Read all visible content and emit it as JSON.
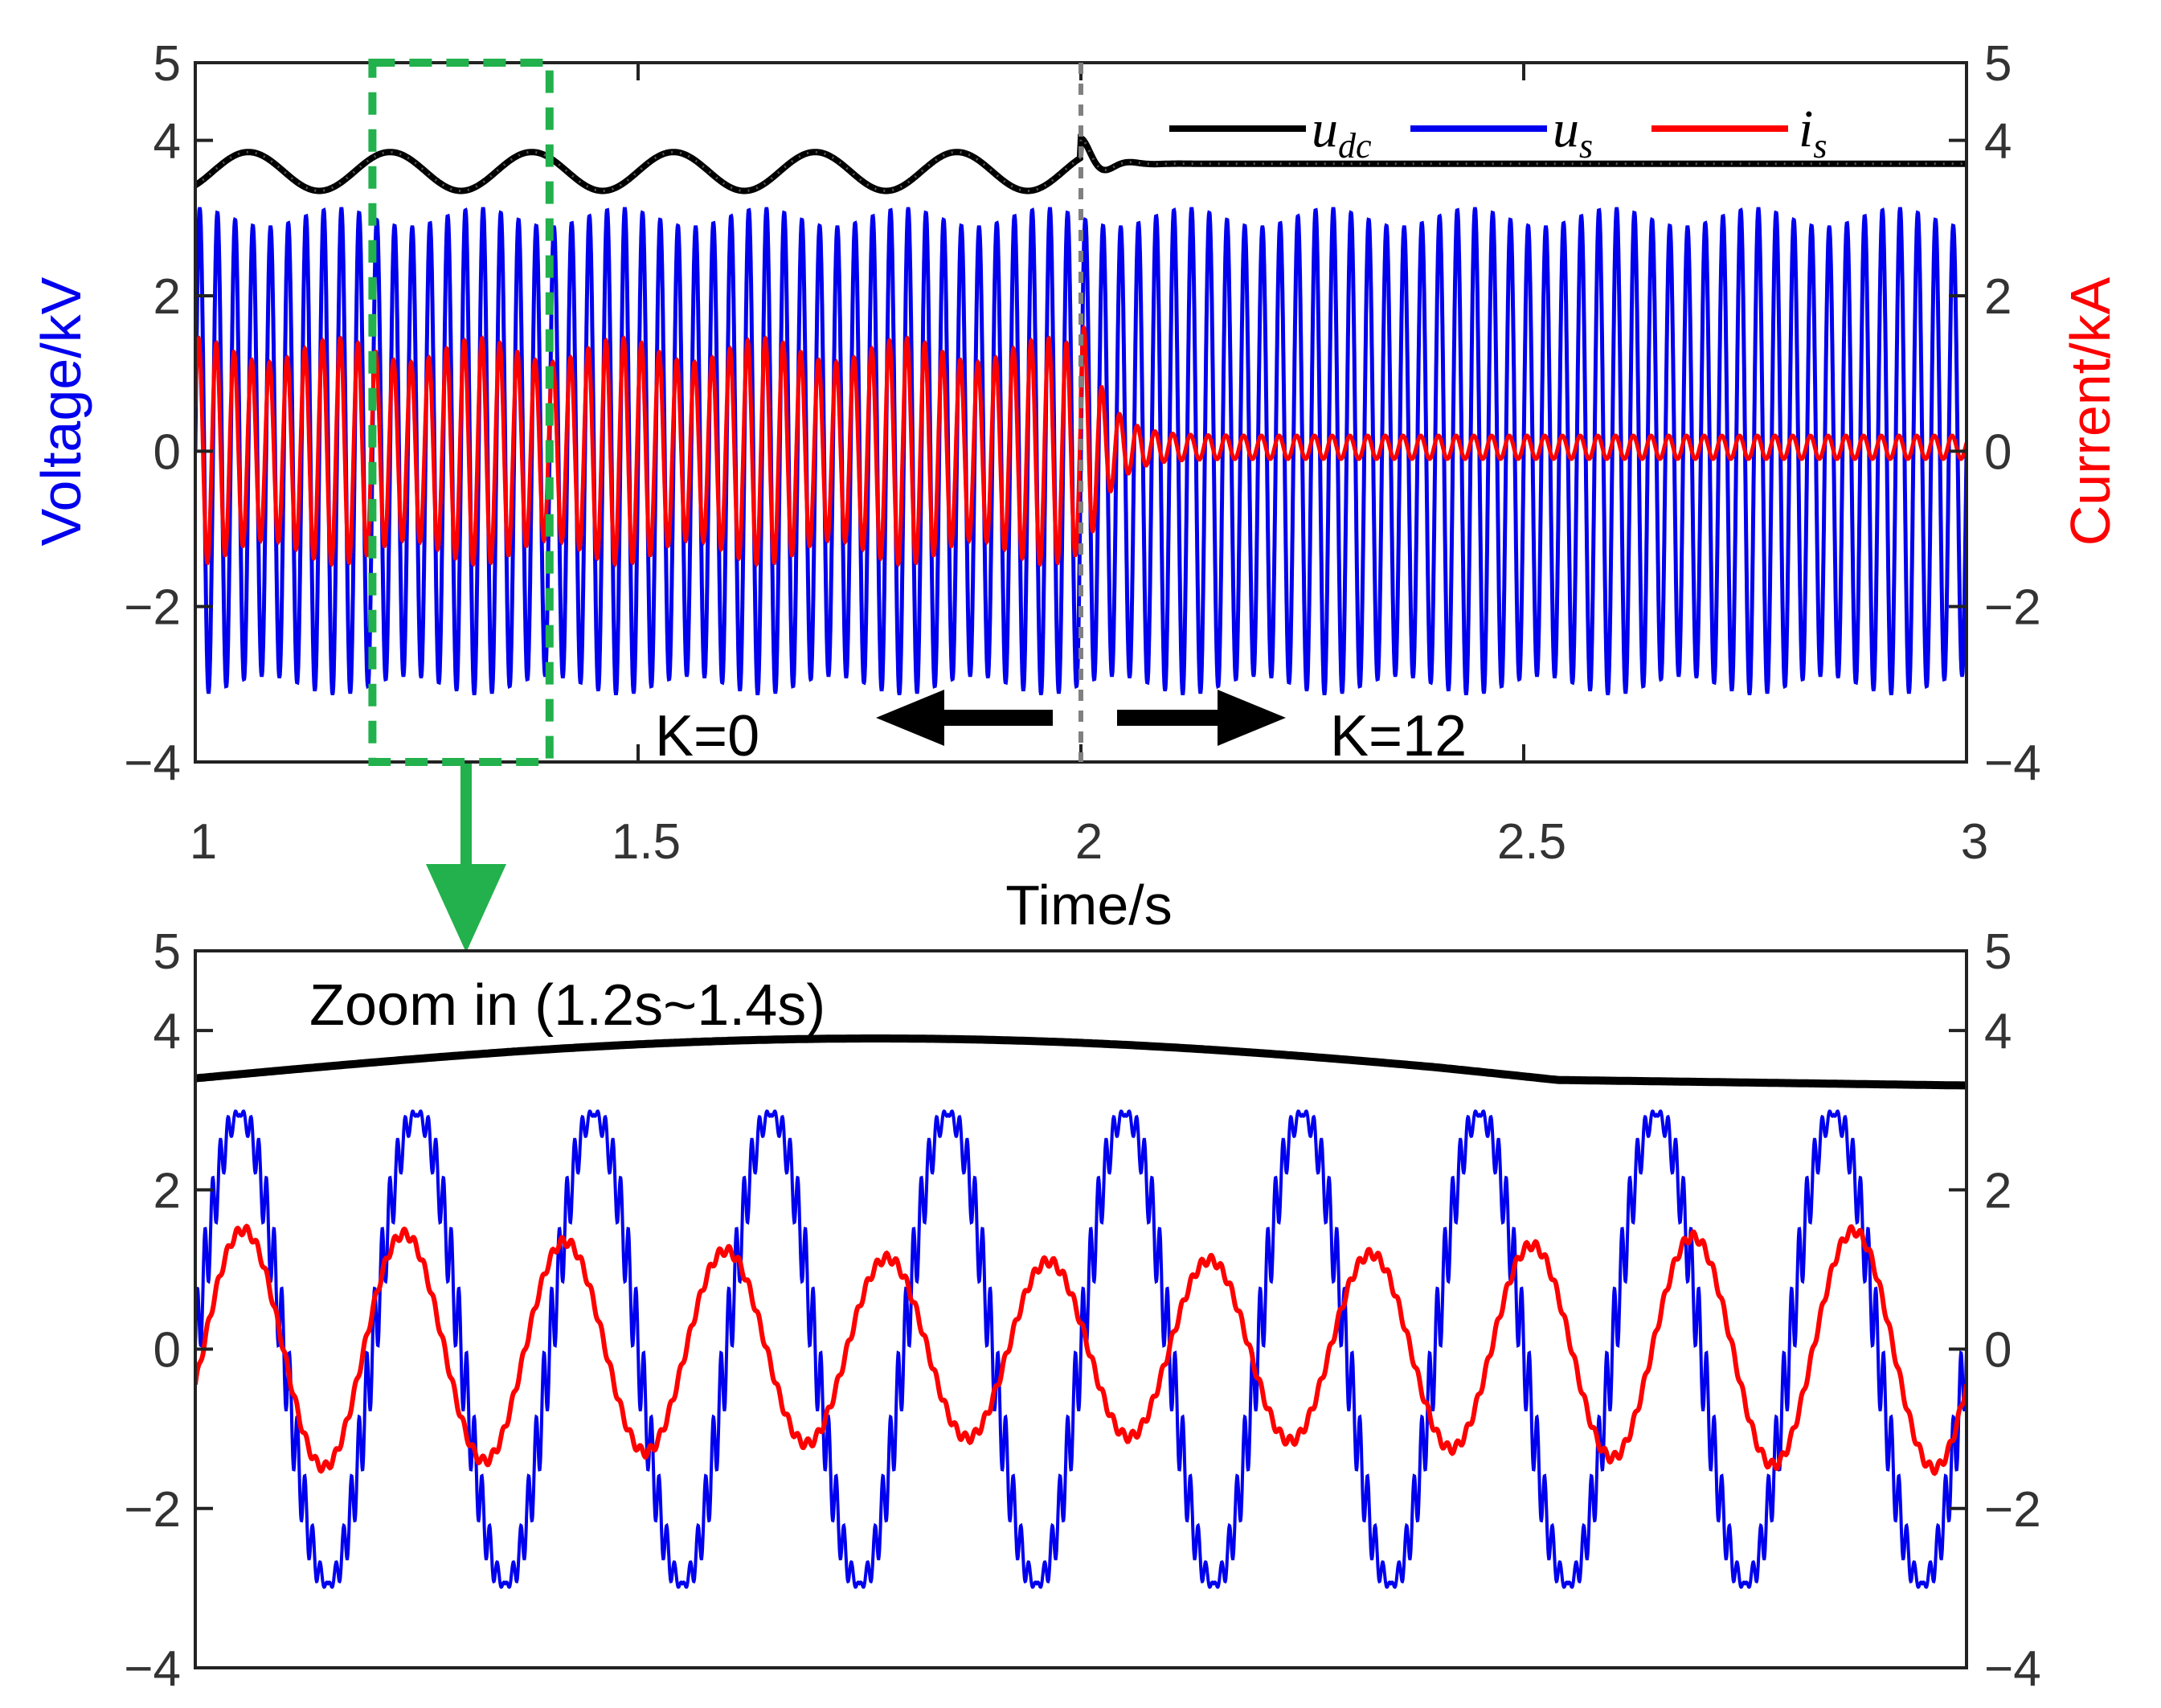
{
  "colors": {
    "udc": "#000000",
    "us": "#0000ee",
    "is": "#ff0000",
    "box": "#22b14c",
    "divider": "#808080",
    "voltage_axis": "#0000ee",
    "current_axis": "#ff0000"
  },
  "chart_data": [
    {
      "type": "line",
      "x": {
        "label": "Time/s",
        "range": [
          1,
          3
        ],
        "ticks": [
          1,
          1.5,
          2,
          2.5,
          3
        ],
        "tick_labels": [
          "1",
          "1.5",
          "2",
          "2.5",
          "3"
        ]
      },
      "y_left": {
        "label": "Voltage/kV",
        "range": [
          -4,
          5
        ],
        "ticks": [
          -4,
          -2,
          0,
          2,
          4,
          5
        ],
        "tick_labels": [
          "−4",
          "−2",
          "0",
          "2",
          "4",
          "5"
        ]
      },
      "y_right": {
        "label": "Current/kA",
        "range": [
          -4,
          5
        ],
        "ticks": [
          -4,
          -2,
          0,
          2,
          4,
          5
        ],
        "tick_labels": [
          "−4",
          "−2",
          "0",
          "2",
          "4",
          "5"
        ]
      },
      "legend": {
        "placement": "top-right",
        "entries": [
          {
            "base": "u",
            "sub": "dc",
            "color": "#000000"
          },
          {
            "base": "u",
            "sub": "s",
            "color": "#0000ee"
          },
          {
            "base": "i",
            "sub": "s",
            "color": "#ff0000"
          }
        ]
      },
      "series": [
        {
          "name": "u_dc",
          "axis": "left",
          "before_event": {
            "mean": 3.6,
            "osc_amplitude": 0.25,
            "osc_freq_hz": 6.25
          },
          "after_event": {
            "steady": 3.7
          }
        },
        {
          "name": "u_s",
          "axis": "left",
          "amplitude": 3.0,
          "freq_hz": 50
        },
        {
          "name": "i_s",
          "axis": "right",
          "before_event": {
            "amplitude": 1.3
          },
          "after_event": {
            "amplitude": 0.15
          }
        }
      ],
      "event": {
        "time": 2.0
      },
      "annotations": {
        "left_text": "K=0",
        "right_text": "K=12"
      },
      "zoom_window": [
        1.2,
        1.4
      ]
    },
    {
      "type": "line",
      "title": "Zoom in (1.2s~1.4s)",
      "x": {
        "range": [
          1.2,
          1.4
        ]
      },
      "y_left": {
        "range": [
          -4,
          5
        ],
        "ticks": [
          -4,
          -2,
          0,
          2,
          4,
          5
        ],
        "tick_labels": [
          "−4",
          "−2",
          "0",
          "2",
          "4",
          "5"
        ]
      },
      "y_right": {
        "range": [
          -4,
          5
        ],
        "ticks": [
          -4,
          -2,
          0,
          2,
          4,
          5
        ],
        "tick_labels": [
          "−4",
          "−2",
          "0",
          "2",
          "4",
          "5"
        ]
      },
      "series": [
        {
          "name": "u_dc",
          "start": 3.4,
          "peak": 3.9,
          "end": 3.7
        },
        {
          "name": "u_s",
          "amplitude": 3.0,
          "freq_hz": 50,
          "cycles": 10
        },
        {
          "name": "i_s",
          "amplitude_range": [
            1.1,
            1.5
          ],
          "cycles": 11
        }
      ]
    }
  ]
}
